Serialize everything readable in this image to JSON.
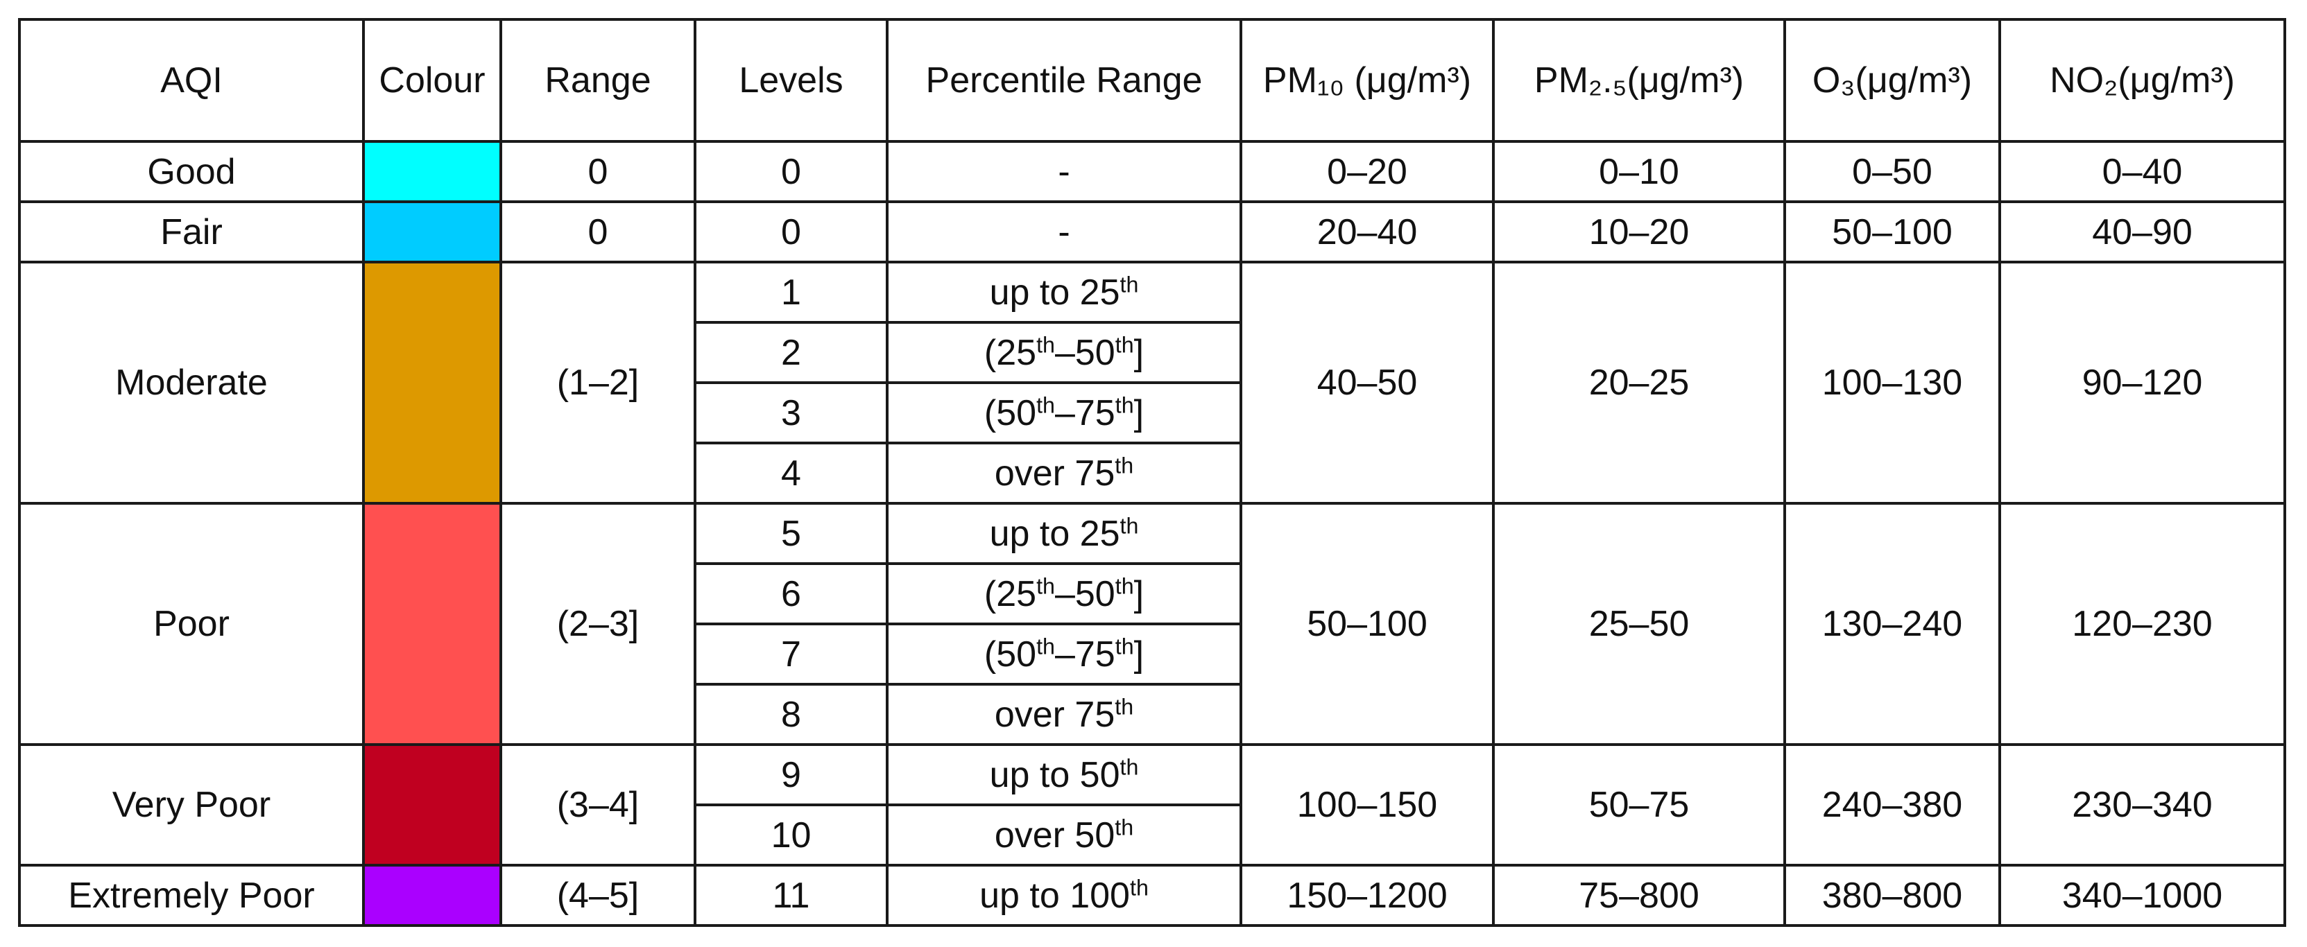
{
  "table": {
    "headers": {
      "aqi": "AQI",
      "colour": "Colour",
      "range": "Range",
      "levels": "Levels",
      "percentile": "Percentile Range",
      "pm10": "PM₁₀ (μg/m³)",
      "pm25": "PM₂.₅(μg/m³)",
      "o3": "O₃(μg/m³)",
      "no2": "NO₂(μg/m³)"
    },
    "rows": [
      {
        "aqi": "Good",
        "colour": "#00ffff",
        "range": "0",
        "levels": [
          {
            "level": "0",
            "pct_pre": "-",
            "pct_sup": "",
            "pct_mid": "",
            "pct_sup2": "",
            "pct_post": ""
          }
        ],
        "pm10": "0–20",
        "pm25": "0–10",
        "o3": "0–50",
        "no2": "0–40"
      },
      {
        "aqi": "Fair",
        "colour": "#00ccff",
        "range": "0",
        "levels": [
          {
            "level": "0",
            "pct_pre": "-",
            "pct_sup": "",
            "pct_mid": "",
            "pct_sup2": "",
            "pct_post": ""
          }
        ],
        "pm10": "20–40",
        "pm25": "10–20",
        "o3": "50–100",
        "no2": "40–90"
      },
      {
        "aqi": "Moderate",
        "colour": "#dd9900",
        "range": "(1–2]",
        "levels": [
          {
            "level": "1",
            "pct_pre": "up to 25",
            "pct_sup": "th",
            "pct_mid": "",
            "pct_sup2": "",
            "pct_post": ""
          },
          {
            "level": "2",
            "pct_pre": "(25",
            "pct_sup": "th",
            "pct_mid": "–50",
            "pct_sup2": "th",
            "pct_post": "]"
          },
          {
            "level": "3",
            "pct_pre": "(50",
            "pct_sup": "th",
            "pct_mid": "–75",
            "pct_sup2": "th",
            "pct_post": "]"
          },
          {
            "level": "4",
            "pct_pre": "over 75",
            "pct_sup": "th",
            "pct_mid": "",
            "pct_sup2": "",
            "pct_post": ""
          }
        ],
        "pm10": "40–50",
        "pm25": "20–25",
        "o3": "100–130",
        "no2": "90–120"
      },
      {
        "aqi": "Poor",
        "colour": "#ff5050",
        "range": "(2–3]",
        "levels": [
          {
            "level": "5",
            "pct_pre": "up to 25",
            "pct_sup": "th",
            "pct_mid": "",
            "pct_sup2": "",
            "pct_post": ""
          },
          {
            "level": "6",
            "pct_pre": "(25",
            "pct_sup": "th",
            "pct_mid": "–50",
            "pct_sup2": "th",
            "pct_post": "]"
          },
          {
            "level": "7",
            "pct_pre": "(50",
            "pct_sup": "th",
            "pct_mid": "–75",
            "pct_sup2": "th",
            "pct_post": "]"
          },
          {
            "level": "8",
            "pct_pre": "over 75",
            "pct_sup": "th",
            "pct_mid": "",
            "pct_sup2": "",
            "pct_post": ""
          }
        ],
        "pm10": "50–100",
        "pm25": "25–50",
        "o3": "130–240",
        "no2": "120–230"
      },
      {
        "aqi": "Very Poor",
        "colour": "#c00020",
        "range": "(3–4]",
        "levels": [
          {
            "level": "9",
            "pct_pre": "up to 50",
            "pct_sup": "th",
            "pct_mid": "",
            "pct_sup2": "",
            "pct_post": ""
          },
          {
            "level": "10",
            "pct_pre": "over 50",
            "pct_sup": "th",
            "pct_mid": "",
            "pct_sup2": "",
            "pct_post": ""
          }
        ],
        "pm10": "100–150",
        "pm25": "50–75",
        "o3": "240–380",
        "no2": "230–340"
      },
      {
        "aqi": "Extremely Poor",
        "colour": "#aa00ff",
        "range": "(4–5]",
        "levels": [
          {
            "level": "11",
            "pct_pre": "up to 100",
            "pct_sup": "th",
            "pct_mid": "",
            "pct_sup2": "",
            "pct_post": ""
          }
        ],
        "pm10": "150–1200",
        "pm25": "75–800",
        "o3": "380–800",
        "no2": "340–1000"
      }
    ]
  }
}
